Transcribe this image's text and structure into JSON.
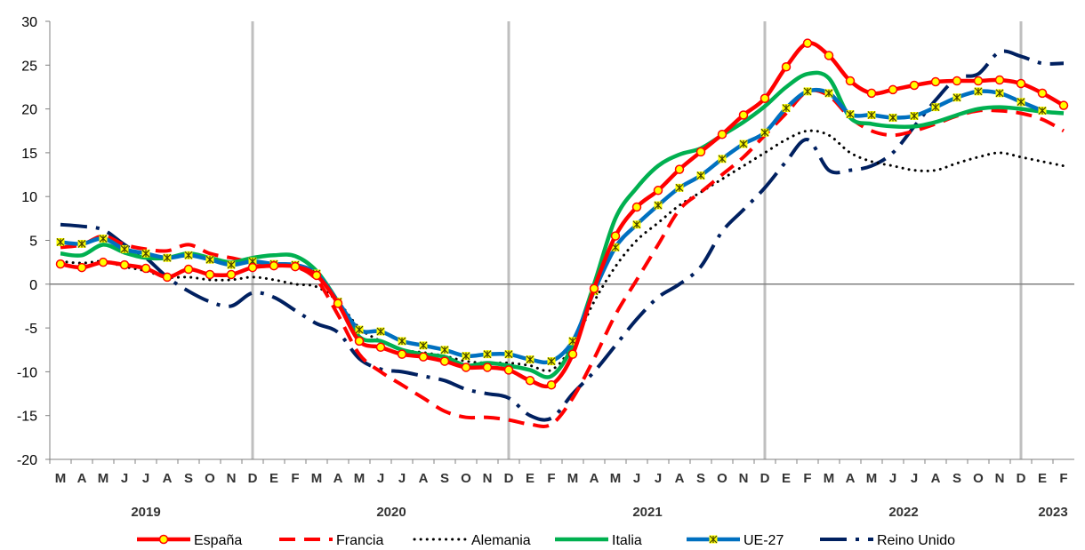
{
  "chart_data": {
    "type": "line",
    "title": "",
    "xlabel": "",
    "ylabel": "",
    "ylim": [
      -20,
      30
    ],
    "yticks": [
      30,
      25,
      20,
      15,
      10,
      5,
      0,
      -5,
      -10,
      -15,
      -20
    ],
    "grid": false,
    "legend_position": "bottom",
    "x": [
      "M",
      "A",
      "M",
      "J",
      "J",
      "A",
      "S",
      "O",
      "N",
      "D",
      "E",
      "F",
      "M",
      "A",
      "M",
      "J",
      "J",
      "A",
      "S",
      "O",
      "N",
      "D",
      "E",
      "F",
      "M",
      "A",
      "M",
      "J",
      "J",
      "A",
      "S",
      "O",
      "N",
      "D",
      "E",
      "F",
      "M",
      "A",
      "M",
      "J",
      "J",
      "A",
      "S",
      "O",
      "N",
      "D",
      "E",
      "F"
    ],
    "years": [
      {
        "label": "2019",
        "center_index": 4
      },
      {
        "label": "2020",
        "center_index": 15.5
      },
      {
        "label": "2021",
        "center_index": 27.5
      },
      {
        "label": "2022",
        "center_index": 39.5
      },
      {
        "label": "2023",
        "center_index": 46.5
      }
    ],
    "year_dividers_after_index": [
      9,
      21,
      33,
      45
    ],
    "series": [
      {
        "name": "España",
        "color": "#ff0000",
        "style": "solid-marker-circle",
        "values": [
          2.3,
          1.9,
          2.5,
          2.2,
          1.8,
          0.8,
          1.7,
          1.1,
          1.1,
          1.9,
          2.1,
          2.0,
          1.0,
          -2.2,
          -6.5,
          -7.2,
          -8.0,
          -8.3,
          -8.8,
          -9.5,
          -9.5,
          -9.8,
          -11.0,
          -11.5,
          -8.0,
          -0.5,
          5.5,
          8.8,
          10.7,
          13.1,
          15.1,
          17.1,
          19.3,
          21.2,
          24.8,
          27.5,
          26.1,
          23.2,
          21.8,
          22.2,
          22.7,
          23.1,
          23.2,
          23.2,
          23.3,
          22.9,
          21.8,
          20.4
        ]
      },
      {
        "name": "Francia",
        "color": "#ff0000",
        "style": "dashed",
        "values": [
          4.2,
          4.5,
          5.5,
          4.5,
          4.0,
          3.8,
          4.5,
          3.5,
          3.0,
          2.5,
          2.3,
          2.0,
          0.5,
          -3.5,
          -8.0,
          -10.0,
          -11.5,
          -13.0,
          -14.5,
          -15.2,
          -15.2,
          -15.5,
          -16.0,
          -16.0,
          -13.0,
          -8.5,
          -3.5,
          0.5,
          4.5,
          8.5,
          10.5,
          12.5,
          14.5,
          17.0,
          19.5,
          22.0,
          21.5,
          19.0,
          17.5,
          17.0,
          17.5,
          18.3,
          19.2,
          19.8,
          19.8,
          19.5,
          18.8,
          17.5
        ]
      },
      {
        "name": "Alemania",
        "color": "#000000",
        "style": "dotted",
        "values": [
          2.6,
          2.4,
          2.6,
          2.0,
          1.5,
          0.8,
          0.8,
          0.5,
          0.5,
          0.8,
          0.5,
          0.0,
          -0.3,
          -2.0,
          -5.0,
          -6.5,
          -7.5,
          -7.8,
          -8.2,
          -8.8,
          -9.0,
          -9.0,
          -9.3,
          -9.8,
          -7.0,
          -2.0,
          2.0,
          5.0,
          7.0,
          9.0,
          10.5,
          12.0,
          13.5,
          15.0,
          16.5,
          17.5,
          17.0,
          15.0,
          14.0,
          13.5,
          13.0,
          13.0,
          13.8,
          14.5,
          15.0,
          14.5,
          14.0,
          13.5
        ]
      },
      {
        "name": "Italia",
        "color": "#00b050",
        "style": "solid",
        "values": [
          3.5,
          3.3,
          4.5,
          3.6,
          3.0,
          3.0,
          3.5,
          3.0,
          2.5,
          3.0,
          3.3,
          3.2,
          1.5,
          -2.0,
          -6.0,
          -6.5,
          -7.5,
          -8.0,
          -8.3,
          -9.3,
          -9.0,
          -9.3,
          -9.8,
          -10.5,
          -7.0,
          0.0,
          7.5,
          11.0,
          13.5,
          14.8,
          15.5,
          17.0,
          18.5,
          20.3,
          22.5,
          24.0,
          23.5,
          19.0,
          18.3,
          18.0,
          18.0,
          18.5,
          19.3,
          20.0,
          20.2,
          20.0,
          19.7,
          19.5
        ]
      },
      {
        "name": "UE-27",
        "color": "#0070c0",
        "style": "solid-marker-star",
        "values": [
          4.8,
          4.6,
          5.2,
          4.0,
          3.5,
          3.0,
          3.3,
          2.8,
          2.2,
          2.6,
          2.3,
          2.2,
          1.2,
          -2.0,
          -5.2,
          -5.4,
          -6.5,
          -7.0,
          -7.5,
          -8.2,
          -8.0,
          -8.0,
          -8.6,
          -8.8,
          -6.5,
          -0.8,
          4.2,
          6.8,
          9.0,
          11.0,
          12.4,
          14.3,
          16.0,
          17.3,
          20.1,
          22.0,
          21.8,
          19.4,
          19.3,
          19.0,
          19.2,
          20.2,
          21.3,
          22.0,
          21.8,
          20.8,
          19.8,
          null
        ]
      },
      {
        "name": "Reino Unido",
        "color": "#002060",
        "style": "long-dash-dot",
        "values": [
          6.8,
          6.6,
          6.2,
          4.5,
          3.0,
          0.8,
          -0.8,
          -2.0,
          -2.5,
          -1.0,
          -1.5,
          -3.0,
          -4.5,
          -5.5,
          -8.5,
          -9.7,
          -10.0,
          -10.5,
          -11.0,
          -12.0,
          -12.5,
          -13.0,
          -15.0,
          -15.3,
          -12.5,
          -10.0,
          -7.0,
          -4.0,
          -1.5,
          0.0,
          2.0,
          6.0,
          8.5,
          11.0,
          14.0,
          16.5,
          13.0,
          13.0,
          13.5,
          15.0,
          18.0,
          21.0,
          23.5,
          24.0,
          26.5,
          26.0,
          25.2,
          25.2
        ]
      }
    ]
  }
}
